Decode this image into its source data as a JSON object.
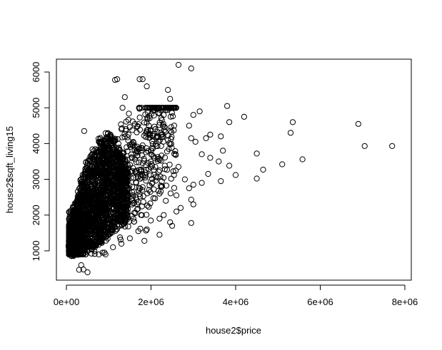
{
  "chart_data": {
    "type": "scatter",
    "title": "",
    "xlabel": "house2$price",
    "ylabel": "house2$sqft_living15",
    "xlim": [
      0,
      8000000
    ],
    "ylim": [
      400,
      6200
    ],
    "x_ticks": [
      {
        "value": 0,
        "label": "0e+00"
      },
      {
        "value": 2000000,
        "label": "2e+06"
      },
      {
        "value": 4000000,
        "label": "4e+06"
      },
      {
        "value": 6000000,
        "label": "6e+06"
      },
      {
        "value": 8000000,
        "label": "8e+06"
      }
    ],
    "y_ticks": [
      {
        "value": 1000,
        "label": "1000"
      },
      {
        "value": 2000,
        "label": "2000"
      },
      {
        "value": 3000,
        "label": "3000"
      },
      {
        "value": 4000,
        "label": "4000"
      },
      {
        "value": 5000,
        "label": "5000"
      },
      {
        "value": 6000,
        "label": "6000"
      }
    ],
    "marker": "open-circle",
    "color": "#000000",
    "points": [
      [
        2650000,
        6200
      ],
      [
        2950000,
        6100
      ],
      [
        1800000,
        5800
      ],
      [
        1730000,
        5800
      ],
      [
        1200000,
        5800
      ],
      [
        1150000,
        5780
      ],
      [
        1900000,
        5600
      ],
      [
        2400000,
        5500
      ],
      [
        2450000,
        5250
      ],
      [
        1380000,
        5300
      ],
      [
        3800000,
        5050
      ],
      [
        3150000,
        4900
      ],
      [
        2200000,
        4850
      ],
      [
        2300000,
        4800
      ],
      [
        3000000,
        4800
      ],
      [
        4200000,
        4750
      ],
      [
        3850000,
        4600
      ],
      [
        5350000,
        4600
      ],
      [
        2900000,
        4500
      ],
      [
        1950000,
        4500
      ],
      [
        6900000,
        4550
      ],
      [
        5300000,
        4300
      ],
      [
        3400000,
        4250
      ],
      [
        3650000,
        4200
      ],
      [
        2950000,
        4150
      ],
      [
        3300000,
        4150
      ],
      [
        7050000,
        3930
      ],
      [
        7700000,
        3930
      ],
      [
        3050000,
        4050
      ],
      [
        2400000,
        4100
      ],
      [
        4500000,
        3720
      ],
      [
        3700000,
        3800
      ],
      [
        3200000,
        3700
      ],
      [
        3400000,
        3600
      ],
      [
        3600000,
        3500
      ],
      [
        5580000,
        3560
      ],
      [
        5100000,
        3420
      ],
      [
        3850000,
        3380
      ],
      [
        4650000,
        3270
      ],
      [
        2650000,
        3350
      ],
      [
        4000000,
        3120
      ],
      [
        3350000,
        3150
      ],
      [
        4500000,
        3020
      ],
      [
        3650000,
        2950
      ],
      [
        2800000,
        3000
      ],
      [
        3000000,
        2850
      ],
      [
        3200000,
        2900
      ],
      [
        2900000,
        2750
      ],
      [
        2600000,
        2550
      ],
      [
        2950000,
        2430
      ],
      [
        3000000,
        2300
      ],
      [
        2700000,
        2200
      ],
      [
        2600000,
        2100
      ],
      [
        2300000,
        2000
      ],
      [
        2200000,
        1900
      ],
      [
        2450000,
        1800
      ],
      [
        2950000,
        1780
      ],
      [
        2500000,
        1700
      ],
      [
        1900000,
        1600
      ],
      [
        2200000,
        1450
      ],
      [
        1700000,
        1550
      ],
      [
        1500000,
        1350
      ],
      [
        1300000,
        1200
      ],
      [
        1100000,
        1100
      ],
      [
        900000,
        950
      ],
      [
        500000,
        400
      ],
      [
        400000,
        480
      ],
      [
        300000,
        470
      ],
      [
        350000,
        600
      ],
      [
        420000,
        4350
      ],
      [
        2100000,
        4400
      ],
      [
        1550000,
        4000
      ],
      [
        1800000,
        3950
      ],
      [
        2000000,
        3700
      ],
      [
        2100000,
        3350
      ],
      [
        1750000,
        3100
      ],
      [
        1650000,
        2900
      ],
      [
        1950000,
        2700
      ],
      [
        2200000,
        2600
      ],
      [
        2350000,
        2400
      ]
    ],
    "bands": [
      [
        80000,
        900,
        1300
      ],
      [
        130000,
        850,
        1700
      ],
      [
        180000,
        850,
        2100
      ],
      [
        230000,
        850,
        2400
      ],
      [
        280000,
        880,
        2700
      ],
      [
        330000,
        900,
        3000
      ],
      [
        380000,
        920,
        3200
      ],
      [
        430000,
        950,
        3400
      ],
      [
        480000,
        980,
        3550
      ],
      [
        530000,
        1000,
        3650
      ],
      [
        580000,
        1030,
        3750
      ],
      [
        630000,
        1060,
        3850
      ],
      [
        680000,
        1100,
        3950
      ],
      [
        730000,
        1150,
        4050
      ],
      [
        780000,
        1200,
        4150
      ],
      [
        830000,
        1250,
        4200
      ],
      [
        880000,
        1300,
        4250
      ],
      [
        930000,
        1350,
        4300
      ],
      [
        980000,
        1400,
        4300
      ],
      [
        1030000,
        1450,
        4250
      ],
      [
        1080000,
        1500,
        4200
      ],
      [
        1130000,
        1550,
        4150
      ],
      [
        1180000,
        1600,
        4000
      ],
      [
        1230000,
        1650,
        3900
      ],
      [
        1280000,
        1700,
        3750
      ],
      [
        1330000,
        1750,
        3600
      ],
      [
        1380000,
        1800,
        3450
      ],
      [
        1430000,
        1850,
        3300
      ]
    ],
    "scatter_x_range": [
      60000,
      2600000
    ],
    "scatter_y_range": [
      900,
      5000
    ],
    "scatter_count": 1400
  }
}
